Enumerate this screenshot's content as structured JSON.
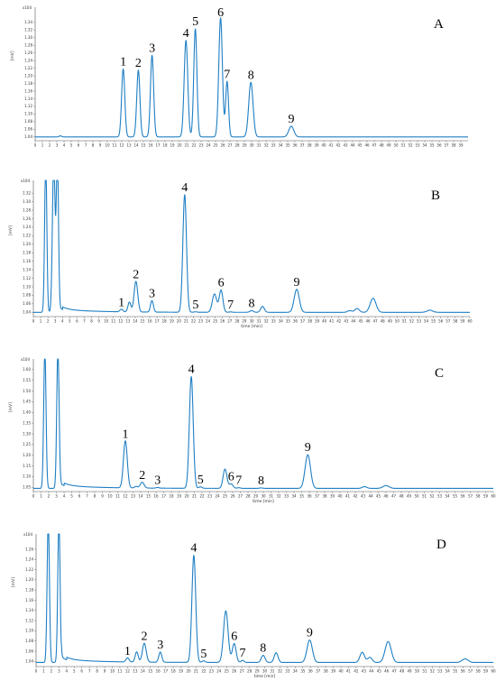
{
  "chart_data": [
    {
      "type": "line",
      "panel": "A",
      "xlabel": "",
      "ylabel": "[mV]",
      "y_multiplier": "x10^4",
      "xlim": [
        0,
        60
      ],
      "ylim": [
        1.03,
        1.38
      ],
      "x_ticks": [
        0,
        1,
        2,
        3,
        4,
        5,
        6,
        7,
        8,
        9,
        10,
        11,
        12,
        13,
        14,
        15,
        16,
        17,
        18,
        19,
        20,
        21,
        22,
        23,
        24,
        25,
        26,
        27,
        28,
        29,
        30,
        31,
        32,
        33,
        34,
        35,
        36,
        37,
        38,
        39,
        40,
        41,
        42,
        43,
        44,
        45,
        46,
        47,
        48,
        49,
        50,
        51,
        52,
        53,
        54,
        55,
        56,
        57,
        58,
        59
      ],
      "y_ticks": [
        1.04,
        1.06,
        1.08,
        1.1,
        1.12,
        1.14,
        1.16,
        1.18,
        1.2,
        1.22,
        1.24,
        1.26,
        1.28,
        1.3,
        1.32,
        1.34
      ],
      "baseline": 1.04,
      "peaks": [
        {
          "label": "1",
          "x": 12.2,
          "y": 1.218,
          "w": 0.22
        },
        {
          "label": "2",
          "x": 14.3,
          "y": 1.215,
          "w": 0.22
        },
        {
          "label": "3",
          "x": 16.2,
          "y": 1.254,
          "w": 0.22
        },
        {
          "label": "4",
          "x": 20.9,
          "y": 1.293,
          "w": 0.25
        },
        {
          "label": "5",
          "x": 22.2,
          "y": 1.323,
          "w": 0.22
        },
        {
          "label": "6",
          "x": 25.7,
          "y": 1.352,
          "w": 0.25
        },
        {
          "label": "7",
          "x": 26.6,
          "y": 1.185,
          "w": 0.2
        },
        {
          "label": "8",
          "x": 29.9,
          "y": 1.183,
          "w": 0.3
        },
        {
          "label": "9",
          "x": 35.5,
          "y": 1.068,
          "w": 0.35
        }
      ],
      "extra_peaks": [
        {
          "x": 3.5,
          "y": 1.043,
          "w": 0.15
        }
      ]
    },
    {
      "type": "line",
      "panel": "B",
      "xlabel": "time [min]",
      "ylabel": "[mV]",
      "y_multiplier": "x10^4",
      "xlim": [
        0,
        60
      ],
      "ylim": [
        1.03,
        1.35
      ],
      "x_ticks": [
        0,
        1,
        2,
        3,
        4,
        5,
        6,
        7,
        8,
        9,
        10,
        11,
        12,
        13,
        14,
        15,
        16,
        17,
        18,
        19,
        20,
        21,
        22,
        23,
        24,
        25,
        26,
        27,
        28,
        29,
        30,
        31,
        32,
        33,
        34,
        35,
        36,
        37,
        38,
        39,
        40,
        41,
        42,
        43,
        44,
        45,
        46,
        47,
        48,
        49,
        50,
        51,
        52,
        53,
        54,
        55,
        56,
        57,
        58,
        59,
        60
      ],
      "y_ticks": [
        1.04,
        1.06,
        1.08,
        1.1,
        1.12,
        1.14,
        1.16,
        1.18,
        1.2,
        1.22,
        1.24,
        1.26,
        1.28,
        1.3,
        1.32
      ],
      "baseline": 1.04,
      "solvent": [
        {
          "x": 1.7,
          "y": 1.4,
          "w": 0.15
        },
        {
          "x": 2.8,
          "y": 1.4,
          "w": 0.18
        },
        {
          "x": 3.3,
          "y": 1.4,
          "w": 0.15
        }
      ],
      "peaks": [
        {
          "label": "1",
          "x": 12.1,
          "y": 1.046,
          "w": 0.2
        },
        {
          "label": "2",
          "x": 14.1,
          "y": 1.112,
          "w": 0.25
        },
        {
          "label": "3",
          "x": 16.3,
          "y": 1.067,
          "w": 0.2
        },
        {
          "label": "4",
          "x": 20.8,
          "y": 1.316,
          "w": 0.25
        },
        {
          "label": "5",
          "x": 22.3,
          "y": 1.041,
          "w": 0.2
        },
        {
          "label": "6",
          "x": 25.8,
          "y": 1.092,
          "w": 0.25
        },
        {
          "label": "7",
          "x": 27.1,
          "y": 1.041,
          "w": 0.2
        },
        {
          "label": "8",
          "x": 30.0,
          "y": 1.044,
          "w": 0.25
        },
        {
          "label": "9",
          "x": 36.2,
          "y": 1.094,
          "w": 0.35
        }
      ],
      "extra_peaks": [
        {
          "x": 13.2,
          "y": 1.063,
          "w": 0.2
        },
        {
          "x": 24.9,
          "y": 1.083,
          "w": 0.3
        },
        {
          "x": 31.5,
          "y": 1.054,
          "w": 0.25
        },
        {
          "x": 43.5,
          "y": 1.044,
          "w": 0.3
        },
        {
          "x": 44.5,
          "y": 1.049,
          "w": 0.3
        },
        {
          "x": 46.7,
          "y": 1.073,
          "w": 0.4
        },
        {
          "x": 54.5,
          "y": 1.045,
          "w": 0.4
        }
      ]
    },
    {
      "type": "line",
      "panel": "C",
      "xlabel": "time [min]",
      "ylabel": "[mV]",
      "y_multiplier": "x10^4",
      "xlim": [
        0,
        60
      ],
      "ylim": [
        1.03,
        1.65
      ],
      "x_ticks": [
        0,
        1,
        2,
        3,
        4,
        5,
        6,
        7,
        8,
        9,
        10,
        11,
        12,
        13,
        14,
        15,
        16,
        17,
        18,
        19,
        20,
        21,
        22,
        23,
        24,
        25,
        26,
        27,
        28,
        29,
        30,
        31,
        32,
        33,
        34,
        35,
        36,
        37,
        38,
        39,
        40,
        41,
        42,
        43,
        44,
        45,
        46,
        47,
        48,
        49,
        50,
        51,
        52,
        53,
        54,
        55,
        56,
        57,
        58,
        59,
        60
      ],
      "y_ticks": [
        1.05,
        1.1,
        1.15,
        1.2,
        1.25,
        1.3,
        1.35,
        1.4,
        1.45,
        1.5,
        1.55,
        1.6
      ],
      "baseline": 1.045,
      "solvent": [
        {
          "x": 1.5,
          "y": 1.7,
          "w": 0.15
        },
        {
          "x": 3.2,
          "y": 1.7,
          "w": 0.15
        }
      ],
      "peaks": [
        {
          "label": "1",
          "x": 12.0,
          "y": 1.265,
          "w": 0.25
        },
        {
          "label": "2",
          "x": 14.2,
          "y": 1.072,
          "w": 0.25
        },
        {
          "label": "3",
          "x": 16.2,
          "y": 1.048,
          "w": 0.2
        },
        {
          "label": "4",
          "x": 20.6,
          "y": 1.567,
          "w": 0.25
        },
        {
          "label": "5",
          "x": 21.8,
          "y": 1.052,
          "w": 0.2
        },
        {
          "label": "6",
          "x": 25.8,
          "y": 1.065,
          "w": 0.25
        },
        {
          "label": "7",
          "x": 26.8,
          "y": 1.048,
          "w": 0.2
        },
        {
          "label": "8",
          "x": 29.7,
          "y": 1.047,
          "w": 0.2
        },
        {
          "label": "9",
          "x": 35.8,
          "y": 1.202,
          "w": 0.35
        }
      ],
      "extra_peaks": [
        {
          "x": 13.4,
          "y": 1.052,
          "w": 0.2
        },
        {
          "x": 25.0,
          "y": 1.135,
          "w": 0.25
        },
        {
          "x": 43.2,
          "y": 1.053,
          "w": 0.3
        },
        {
          "x": 46.0,
          "y": 1.058,
          "w": 0.4
        }
      ]
    },
    {
      "type": "line",
      "panel": "D",
      "xlabel": "time [min]",
      "ylabel": "[mV]",
      "y_multiplier": "x10^4",
      "xlim": [
        0,
        60
      ],
      "ylim": [
        1.03,
        1.29
      ],
      "x_ticks": [
        0,
        1,
        2,
        3,
        4,
        5,
        6,
        7,
        8,
        9,
        10,
        11,
        12,
        13,
        14,
        15,
        16,
        17,
        18,
        19,
        20,
        21,
        22,
        23,
        24,
        25,
        26,
        27,
        28,
        29,
        30,
        31,
        32,
        33,
        34,
        35,
        36,
        37,
        38,
        39,
        40,
        41,
        42,
        43,
        44,
        45,
        46,
        47,
        48,
        49,
        50,
        51,
        52,
        53,
        54,
        55,
        56,
        57,
        58,
        59,
        60
      ],
      "y_ticks": [
        1.04,
        1.06,
        1.08,
        1.1,
        1.12,
        1.14,
        1.16,
        1.18,
        1.2,
        1.22,
        1.24,
        1.26
      ],
      "baseline": 1.038,
      "solvent": [
        {
          "x": 1.6,
          "y": 1.32,
          "w": 0.15
        },
        {
          "x": 3.0,
          "y": 1.32,
          "w": 0.15
        }
      ],
      "peaks": [
        {
          "label": "1",
          "x": 12.0,
          "y": 1.046,
          "w": 0.2
        },
        {
          "label": "2",
          "x": 14.2,
          "y": 1.075,
          "w": 0.25
        },
        {
          "label": "3",
          "x": 16.3,
          "y": 1.058,
          "w": 0.2
        },
        {
          "label": "4",
          "x": 20.7,
          "y": 1.248,
          "w": 0.25
        },
        {
          "label": "5",
          "x": 22.0,
          "y": 1.041,
          "w": 0.2
        },
        {
          "label": "6",
          "x": 26.0,
          "y": 1.075,
          "w": 0.25
        },
        {
          "label": "7",
          "x": 27.1,
          "y": 1.042,
          "w": 0.2
        },
        {
          "label": "8",
          "x": 29.8,
          "y": 1.052,
          "w": 0.25
        },
        {
          "label": "9",
          "x": 35.9,
          "y": 1.082,
          "w": 0.35
        }
      ],
      "extra_peaks": [
        {
          "x": 13.2,
          "y": 1.058,
          "w": 0.2
        },
        {
          "x": 24.9,
          "y": 1.139,
          "w": 0.3
        },
        {
          "x": 31.5,
          "y": 1.057,
          "w": 0.25
        },
        {
          "x": 42.8,
          "y": 1.058,
          "w": 0.3
        },
        {
          "x": 43.8,
          "y": 1.048,
          "w": 0.3
        },
        {
          "x": 46.2,
          "y": 1.079,
          "w": 0.4
        },
        {
          "x": 56.3,
          "y": 1.045,
          "w": 0.4
        }
      ]
    }
  ],
  "colors": {
    "trace": "#1f7fc4",
    "axis": "#555555",
    "text": "#000000"
  }
}
